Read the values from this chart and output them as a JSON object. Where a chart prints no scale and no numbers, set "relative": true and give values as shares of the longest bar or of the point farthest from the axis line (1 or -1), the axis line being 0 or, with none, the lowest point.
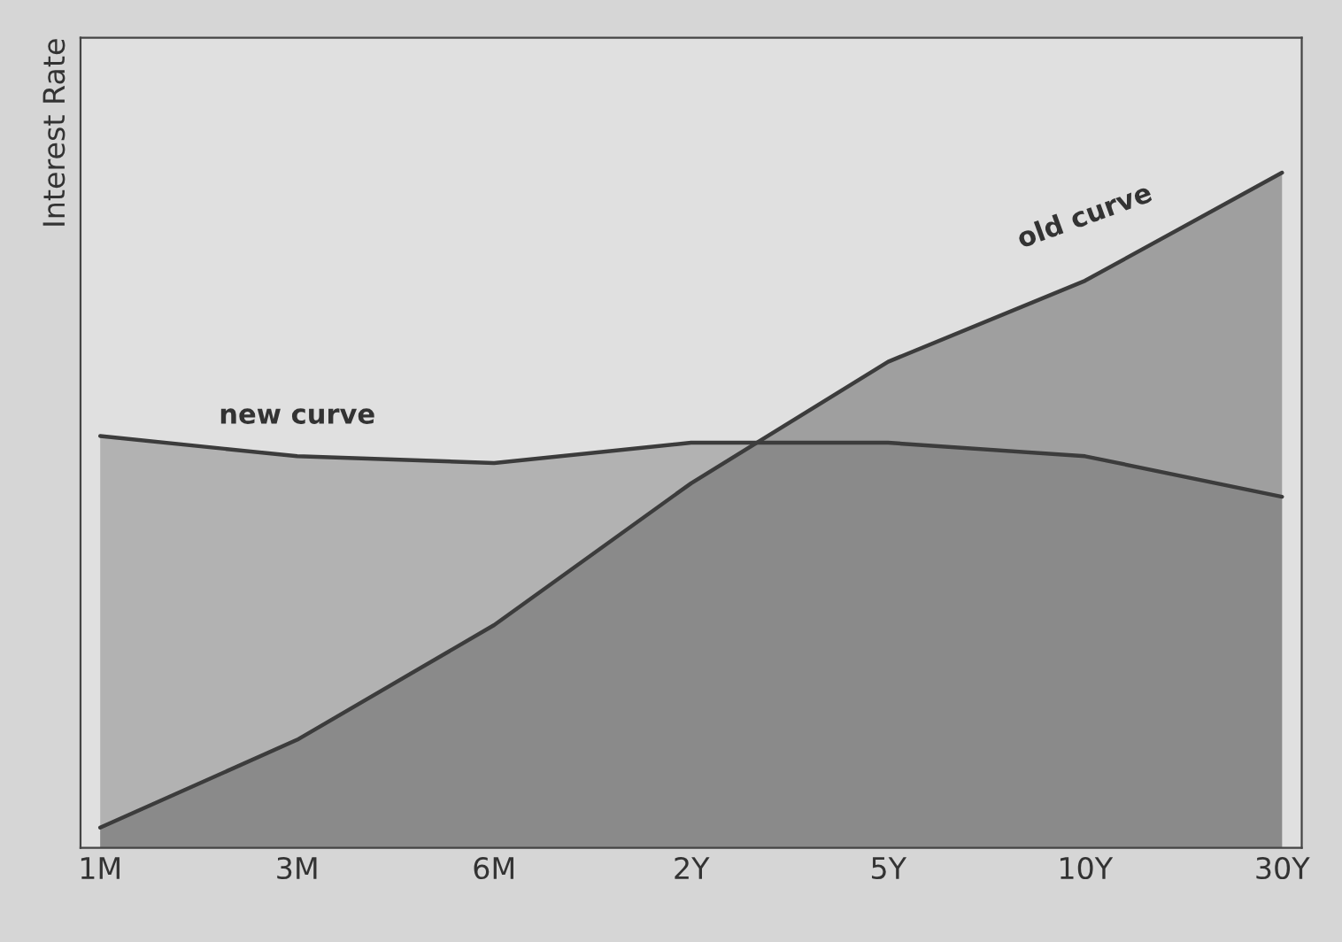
{
  "chart_data": {
    "type": "area",
    "relative": true,
    "ylabel": "Interest Rate",
    "categories": [
      "1M",
      "3M",
      "6M",
      "2Y",
      "5Y",
      "10Y",
      "30Y"
    ],
    "series": [
      {
        "name": "new curve",
        "color": "#8c8c8c",
        "values": [
          0.61,
          0.58,
          0.57,
          0.6,
          0.6,
          0.58,
          0.52
        ]
      },
      {
        "name": "old curve",
        "color": "#6a6a6a",
        "values": [
          0.03,
          0.16,
          0.33,
          0.54,
          0.72,
          0.84,
          1.0
        ]
      }
    ],
    "grid": false,
    "legend": false
  }
}
